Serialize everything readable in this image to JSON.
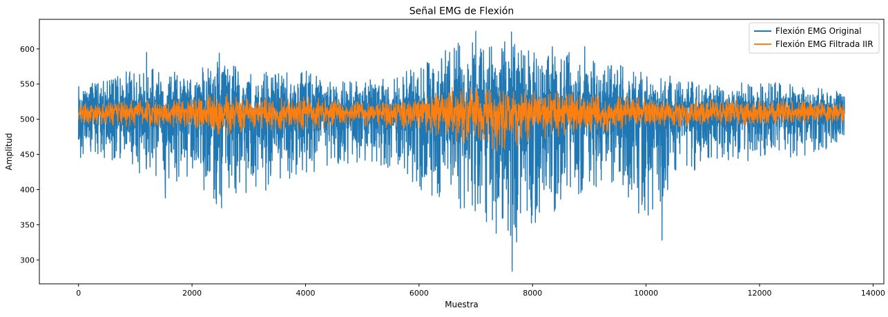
{
  "chart_data": {
    "type": "line",
    "title": "Señal EMG de Flexión",
    "xlabel": "Muestra",
    "ylabel": "Amplitud",
    "xlim": [
      -690,
      14190
    ],
    "ylim": [
      266,
      642
    ],
    "x_ticks": [
      0,
      2000,
      4000,
      6000,
      8000,
      10000,
      12000,
      14000
    ],
    "y_ticks": [
      300,
      350,
      400,
      450,
      500,
      550,
      600
    ],
    "legend_position": "top-right",
    "grid": false,
    "n_samples": 13500,
    "series": [
      {
        "name": "Flexión EMG Original",
        "color": "#1f77b4",
        "baseline": 512,
        "envelope": {
          "x": [
            0,
            500,
            1000,
            1500,
            2000,
            2500,
            3000,
            3500,
            4000,
            4500,
            5000,
            5500,
            6000,
            6500,
            7000,
            7500,
            8000,
            8500,
            9000,
            9500,
            10000,
            10500,
            11000,
            11500,
            12000,
            12500,
            13000,
            13500
          ],
          "upper": [
            550,
            555,
            575,
            570,
            565,
            590,
            570,
            565,
            570,
            555,
            555,
            560,
            575,
            600,
            620,
            615,
            595,
            600,
            585,
            580,
            570,
            560,
            550,
            550,
            555,
            550,
            545,
            545
          ],
          "lower": [
            440,
            445,
            425,
            410,
            405,
            375,
            395,
            410,
            420,
            435,
            440,
            430,
            400,
            380,
            360,
            285,
            350,
            375,
            400,
            410,
            330,
            420,
            430,
            440,
            440,
            445,
            450,
            470
          ]
        },
        "spikes": [
          {
            "x": 1200,
            "y": 595
          },
          {
            "x": 1530,
            "y": 388
          },
          {
            "x": 2480,
            "y": 594
          },
          {
            "x": 2520,
            "y": 374
          },
          {
            "x": 3300,
            "y": 399
          },
          {
            "x": 6690,
            "y": 608
          },
          {
            "x": 7000,
            "y": 625
          },
          {
            "x": 7360,
            "y": 338
          },
          {
            "x": 7570,
            "y": 342
          },
          {
            "x": 7630,
            "y": 624
          },
          {
            "x": 7640,
            "y": 284
          },
          {
            "x": 8350,
            "y": 603
          },
          {
            "x": 8400,
            "y": 373
          },
          {
            "x": 8920,
            "y": 603
          },
          {
            "x": 10280,
            "y": 328
          }
        ]
      },
      {
        "name": "Flexión EMG Filtrada IIR",
        "color": "#ff7f0e",
        "baseline": 510,
        "envelope": {
          "x": [
            0,
            1000,
            2000,
            2500,
            3000,
            4000,
            5000,
            6000,
            6500,
            7000,
            7500,
            8000,
            8500,
            9000,
            10000,
            11000,
            12000,
            13000,
            13500
          ],
          "upper": [
            522,
            528,
            530,
            538,
            530,
            532,
            525,
            528,
            548,
            545,
            540,
            542,
            540,
            538,
            530,
            530,
            528,
            525,
            522
          ],
          "lower": [
            495,
            488,
            485,
            470,
            485,
            485,
            490,
            485,
            470,
            462,
            452,
            470,
            470,
            478,
            488,
            490,
            492,
            495,
            495
          ]
        }
      }
    ]
  }
}
